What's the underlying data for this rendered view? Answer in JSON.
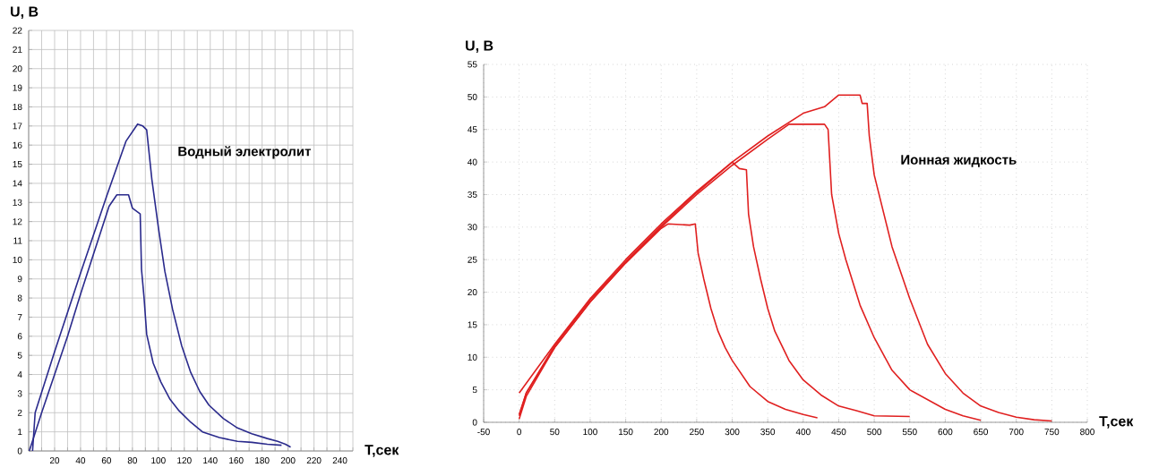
{
  "chart_data": [
    {
      "type": "line",
      "xlabel": "T,сек",
      "ylabel": "U, В",
      "annotations": [
        "Водный электролит"
      ],
      "xlim": [
        0,
        250
      ],
      "ylim": [
        0,
        22
      ],
      "xticks": [
        {
          "value": 0,
          "label": null
        },
        {
          "value": 10,
          "label": null
        },
        20,
        {
          "value": 30,
          "label": null
        },
        40,
        {
          "value": 50,
          "label": null
        },
        60,
        {
          "value": 70,
          "label": null
        },
        80,
        {
          "value": 90,
          "label": null
        },
        100,
        {
          "value": 110,
          "label": null
        },
        120,
        {
          "value": 130,
          "label": null
        },
        140,
        {
          "value": 150,
          "label": null
        },
        160,
        {
          "value": 170,
          "label": null
        },
        180,
        {
          "value": 190,
          "label": null
        },
        200,
        {
          "value": 210,
          "label": null
        },
        220,
        {
          "value": 230,
          "label": null
        },
        240,
        {
          "value": 250,
          "label": null
        }
      ],
      "yticks": [
        0,
        1,
        2,
        3,
        4,
        5,
        6,
        7,
        8,
        9,
        10,
        11,
        12,
        13,
        14,
        15,
        16,
        17,
        18,
        19,
        20,
        21,
        22
      ],
      "grid": true,
      "marker": "none",
      "line_style": "solid",
      "series": [
        {
          "color": "#2a2a8c",
          "x": [
            3,
            5,
            20,
            40,
            60,
            75,
            84,
            88,
            91,
            95,
            100,
            105,
            111,
            118,
            125,
            132,
            139,
            150,
            161,
            172,
            184,
            192,
            198,
            202
          ],
          "values": [
            0,
            2,
            5.2,
            9.3,
            13.3,
            16.2,
            17.1,
            17.0,
            16.8,
            14.2,
            11.7,
            9.4,
            7.4,
            5.5,
            4.1,
            3.1,
            2.4,
            1.7,
            1.2,
            0.9,
            0.65,
            0.5,
            0.35,
            0.2
          ]
        },
        {
          "color": "#2a2a8c",
          "x": [
            0.5,
            10,
            20,
            30,
            40,
            50,
            62,
            68,
            77,
            80,
            86,
            87,
            89,
            91,
            96,
            102,
            109,
            116,
            125,
            134,
            147,
            161,
            172,
            184,
            195
          ],
          "values": [
            0,
            2,
            4,
            6,
            8.2,
            10.3,
            12.8,
            13.4,
            13.4,
            12.7,
            12.4,
            9.5,
            8,
            6.1,
            4.6,
            3.6,
            2.7,
            2.1,
            1.5,
            1.0,
            0.7,
            0.5,
            0.45,
            0.35,
            0.3
          ]
        }
      ]
    },
    {
      "type": "line",
      "xlabel": "T,сек",
      "ylabel": "U, В",
      "annotations": [
        "Ионная жидкость"
      ],
      "xlim": [
        -50,
        800
      ],
      "ylim": [
        0,
        55
      ],
      "xticks": [
        -50,
        0,
        50,
        100,
        150,
        200,
        250,
        300,
        350,
        400,
        450,
        500,
        550,
        600,
        650,
        700,
        750,
        800
      ],
      "yticks": [
        0,
        5,
        10,
        15,
        20,
        25,
        30,
        35,
        40,
        45,
        50,
        55
      ],
      "grid": true,
      "marker": "none",
      "line_style": "solid",
      "series": [
        {
          "color": "#e02020",
          "x": [
            0,
            10,
            50,
            100,
            150,
            200,
            210,
            240,
            248,
            252,
            260,
            270,
            280,
            290,
            300,
            325,
            350,
            375,
            400,
            420
          ],
          "values": [
            0.5,
            4,
            11.5,
            18.5,
            24.5,
            29.8,
            30.5,
            30.3,
            30.5,
            26,
            22,
            17.5,
            14,
            11.5,
            9.5,
            5.5,
            3.2,
            2,
            1.2,
            0.7
          ]
        },
        {
          "color": "#e02020",
          "x": [
            0,
            10,
            50,
            100,
            150,
            200,
            250,
            300,
            310,
            320,
            323,
            330,
            340,
            350,
            360,
            380,
            400,
            425,
            450,
            475,
            500,
            550
          ],
          "values": [
            1,
            4.5,
            11.8,
            18.8,
            24.7,
            30.2,
            35.3,
            40,
            39,
            38.8,
            32,
            27,
            22,
            17.5,
            14,
            9.5,
            6.5,
            4.2,
            2.5,
            1.8,
            1,
            0.9
          ]
        },
        {
          "color": "#e02020",
          "x": [
            0,
            10,
            50,
            100,
            150,
            200,
            250,
            300,
            350,
            380,
            430,
            435,
            440,
            450,
            460,
            480,
            500,
            525,
            550,
            575,
            600,
            625,
            650
          ],
          "values": [
            1.2,
            4.5,
            11.5,
            18.5,
            24.5,
            30,
            35,
            39.5,
            43.5,
            45.8,
            45.8,
            45,
            35,
            29,
            25,
            18,
            13,
            8,
            5,
            3.5,
            2,
            1,
            0.3
          ]
        },
        {
          "color": "#e02020",
          "x": [
            0,
            50,
            100,
            150,
            200,
            250,
            300,
            350,
            400,
            430,
            450,
            480,
            483,
            490,
            493,
            500,
            525,
            550,
            575,
            600,
            625,
            650,
            675,
            700,
            725,
            750
          ],
          "values": [
            4.5,
            12,
            19,
            25,
            30.5,
            35.5,
            40,
            44,
            47.5,
            48.5,
            50.3,
            50.3,
            49,
            49,
            44,
            38,
            27,
            19,
            12,
            7.5,
            4.5,
            2.5,
            1.5,
            0.8,
            0.4,
            0.2
          ]
        }
      ]
    }
  ]
}
